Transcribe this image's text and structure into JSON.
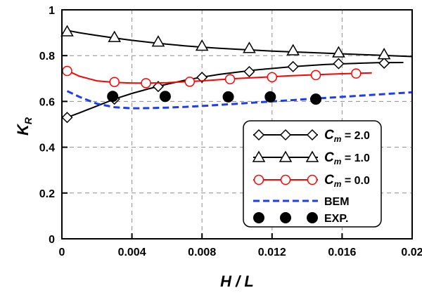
{
  "chart_data": {
    "type": "line",
    "title": "",
    "xlabel": {
      "main": "H",
      "rest": " / L"
    },
    "ylabel": {
      "main": "K",
      "sub": "R"
    },
    "xlim": [
      0,
      0.02
    ],
    "ylim": [
      0,
      1
    ],
    "xticks": [
      0,
      0.004,
      0.008,
      0.012,
      0.016,
      0.02
    ],
    "xtick_labels": [
      "0",
      "0.004",
      "0.008",
      "0.012",
      "0.016",
      "0.02"
    ],
    "yticks": [
      0,
      0.2,
      0.4,
      0.6,
      0.8,
      1
    ],
    "ytick_labels": [
      "0",
      "0.2",
      "0.4",
      "0.6",
      "0.8",
      "1"
    ],
    "grid": true,
    "legend_position": "bottom-right",
    "series": [
      {
        "name": "C_m = 2.0",
        "label": {
          "sym": "C",
          "sub": "m",
          "rest": " = 2.0"
        },
        "color": "#000000",
        "marker": "diamond",
        "line": "solid",
        "curve_x": [
          0.0003,
          0.001,
          0.002,
          0.003,
          0.004,
          0.005,
          0.006,
          0.007,
          0.008,
          0.009,
          0.01,
          0.011,
          0.012,
          0.013,
          0.014,
          0.015,
          0.016,
          0.017,
          0.018,
          0.0195
        ],
        "curve_y": [
          0.53,
          0.55,
          0.58,
          0.61,
          0.635,
          0.656,
          0.675,
          0.692,
          0.706,
          0.718,
          0.728,
          0.737,
          0.744,
          0.751,
          0.756,
          0.761,
          0.764,
          0.767,
          0.769,
          0.77
        ],
        "marker_x": [
          0.0003,
          0.003,
          0.0055,
          0.008,
          0.0107,
          0.0132,
          0.0158,
          0.0184
        ],
        "marker_y": [
          0.53,
          0.61,
          0.665,
          0.705,
          0.73,
          0.752,
          0.765,
          0.767
        ]
      },
      {
        "name": "C_m = 1.0",
        "label": {
          "sym": "C",
          "sub": "m",
          "rest": " = 1.0"
        },
        "color": "#000000",
        "marker": "triangle",
        "line": "solid",
        "curve_x": [
          0.0003,
          0.001,
          0.002,
          0.003,
          0.004,
          0.005,
          0.006,
          0.007,
          0.008,
          0.009,
          0.01,
          0.011,
          0.012,
          0.013,
          0.014,
          0.015,
          0.016,
          0.017,
          0.018,
          0.019,
          0.02
        ],
        "curve_y": [
          0.91,
          0.9,
          0.888,
          0.877,
          0.867,
          0.858,
          0.85,
          0.843,
          0.837,
          0.832,
          0.828,
          0.824,
          0.82,
          0.817,
          0.814,
          0.811,
          0.808,
          0.805,
          0.802,
          0.799,
          0.796
        ],
        "marker_x": [
          0.0003,
          0.003,
          0.0055,
          0.008,
          0.0107,
          0.0132,
          0.0158,
          0.0184
        ],
        "marker_y": [
          0.905,
          0.88,
          0.86,
          0.842,
          0.832,
          0.822,
          0.813,
          0.805
        ]
      },
      {
        "name": "C_m = 0.0",
        "label": {
          "sym": "C",
          "sub": "m",
          "rest": " = 0.0"
        },
        "color": "#ff0000",
        "marker": "circle-open",
        "line": "solid",
        "curve_x": [
          0.0003,
          0.001,
          0.002,
          0.003,
          0.004,
          0.005,
          0.006,
          0.007,
          0.008,
          0.009,
          0.01,
          0.011,
          0.012,
          0.013,
          0.014,
          0.015,
          0.016,
          0.017,
          0.0177
        ],
        "curve_y": [
          0.735,
          0.71,
          0.69,
          0.683,
          0.68,
          0.68,
          0.682,
          0.686,
          0.69,
          0.695,
          0.7,
          0.704,
          0.708,
          0.712,
          0.715,
          0.718,
          0.721,
          0.723,
          0.725
        ],
        "marker_x": [
          0.0003,
          0.003,
          0.0048,
          0.0073,
          0.0096,
          0.012,
          0.0145,
          0.0168
        ],
        "marker_y": [
          0.733,
          0.685,
          0.68,
          0.686,
          0.697,
          0.706,
          0.715,
          0.722
        ]
      },
      {
        "name": "BEM",
        "label": {
          "sym": "",
          "sub": "",
          "rest": "BEM"
        },
        "color": "#1e3cf0",
        "marker": "none",
        "line": "dashed",
        "curve_x": [
          0.0003,
          0.001,
          0.002,
          0.003,
          0.004,
          0.005,
          0.006,
          0.007,
          0.008,
          0.009,
          0.01,
          0.011,
          0.012,
          0.013,
          0.014,
          0.015,
          0.016,
          0.017,
          0.018,
          0.019,
          0.02
        ],
        "curve_y": [
          0.645,
          0.62,
          0.59,
          0.575,
          0.57,
          0.571,
          0.573,
          0.576,
          0.58,
          0.585,
          0.59,
          0.595,
          0.6,
          0.605,
          0.61,
          0.615,
          0.62,
          0.625,
          0.63,
          0.635,
          0.64
        ],
        "marker_x": [],
        "marker_y": []
      },
      {
        "name": "EXP.",
        "label": {
          "sym": "",
          "sub": "",
          "rest": "EXP."
        },
        "color": "#000000",
        "marker": "circle-filled",
        "line": "none",
        "curve_x": [],
        "curve_y": [],
        "marker_x": [
          0.0029,
          0.0059,
          0.0095,
          0.0119,
          0.0145
        ],
        "marker_y": [
          0.622,
          0.622,
          0.62,
          0.62,
          0.61
        ]
      }
    ]
  }
}
